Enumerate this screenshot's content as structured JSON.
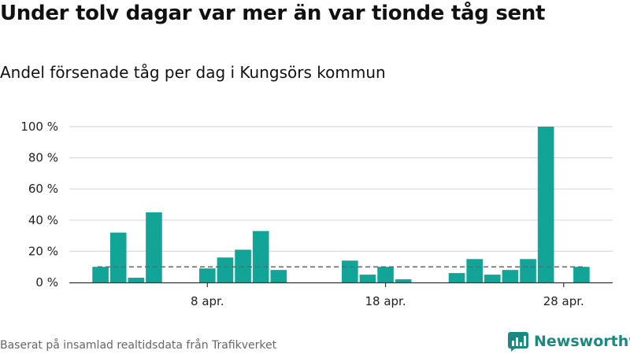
{
  "title": "Under tolv dagar var mer än var tionde tåg sent",
  "subtitle": "Andel försenade tåg per dag i Kungsörs kommun",
  "source": "Baserat på insamlad realtidsdata från Trafikverket",
  "brand": {
    "name": "Newsworthy",
    "icon": "newsworthy-logo-icon",
    "color": "#1a8a80"
  },
  "colors": {
    "bar": "#12a597",
    "grid": "#d9d9d9",
    "reference": "#666666",
    "axis": "#333333"
  },
  "chart_data": {
    "type": "bar",
    "title": "Andel försenade tåg per dag i Kungsörs kommun",
    "xlabel": "",
    "ylabel": "",
    "ylim": [
      0,
      100
    ],
    "y_ticks": [
      0,
      20,
      40,
      60,
      80,
      100
    ],
    "y_tick_labels": [
      "0 %",
      "20 %",
      "40 %",
      "60 %",
      "80 %",
      "100 %"
    ],
    "x_tick_labels": [
      {
        "label": "8 apr.",
        "day": 8
      },
      {
        "label": "18 apr.",
        "day": 18
      },
      {
        "label": "28 apr.",
        "day": 28
      }
    ],
    "x_range_days": [
      0.25,
      30.75
    ],
    "reference_line": {
      "value": 10,
      "style": "dashed"
    },
    "series": [
      {
        "name": "Andel försenade tåg",
        "days": [
          2,
          3,
          4,
          5,
          6,
          7,
          8,
          9,
          10,
          11,
          12,
          13,
          14,
          15,
          16,
          17,
          18,
          19,
          20,
          21,
          22,
          23,
          24,
          25,
          26,
          27,
          28,
          29
        ],
        "values": [
          10,
          32,
          3,
          45,
          0,
          0,
          9,
          16,
          21,
          33,
          8,
          0,
          0,
          0,
          14,
          5,
          10,
          2,
          0,
          0,
          6,
          15,
          5,
          8,
          15,
          100,
          0,
          10
        ]
      }
    ]
  }
}
